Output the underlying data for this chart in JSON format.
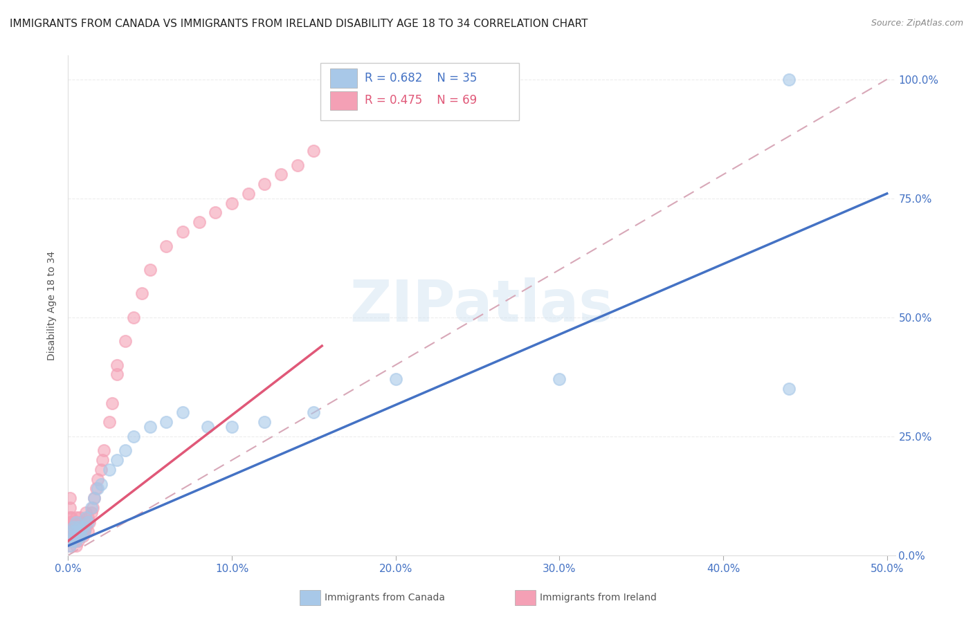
{
  "title": "IMMIGRANTS FROM CANADA VS IMMIGRANTS FROM IRELAND DISABILITY AGE 18 TO 34 CORRELATION CHART",
  "source": "Source: ZipAtlas.com",
  "ylabel": "Disability Age 18 to 34",
  "watermark": "ZIPatlas",
  "xlim": [
    0.0,
    0.5
  ],
  "ylim": [
    0.0,
    1.05
  ],
  "canada_color": "#a8c8e8",
  "ireland_color": "#f4a0b5",
  "canada_R": 0.682,
  "canada_N": 35,
  "ireland_R": 0.475,
  "ireland_N": 69,
  "canada_line_color": "#4472c4",
  "ireland_line_color": "#e05878",
  "ref_line_color": "#d8a8b8",
  "grid_color": "#e8e8e8",
  "title_fontsize": 11,
  "source_fontsize": 9,
  "tick_color": "#4472c4",
  "tick_fontsize": 11,
  "ylabel_fontsize": 10,
  "canada_scatter_x": [
    0.001,
    0.002,
    0.002,
    0.003,
    0.003,
    0.004,
    0.005,
    0.005,
    0.006,
    0.006,
    0.007,
    0.008,
    0.009,
    0.01,
    0.011,
    0.012,
    0.014,
    0.016,
    0.018,
    0.02,
    0.025,
    0.03,
    0.035,
    0.04,
    0.05,
    0.06,
    0.07,
    0.085,
    0.1,
    0.12,
    0.15,
    0.2,
    0.3,
    0.44,
    0.44
  ],
  "canada_scatter_y": [
    0.02,
    0.03,
    0.05,
    0.04,
    0.06,
    0.05,
    0.03,
    0.07,
    0.04,
    0.06,
    0.05,
    0.04,
    0.06,
    0.05,
    0.08,
    0.07,
    0.1,
    0.12,
    0.14,
    0.15,
    0.18,
    0.2,
    0.22,
    0.25,
    0.27,
    0.28,
    0.3,
    0.27,
    0.27,
    0.28,
    0.3,
    0.37,
    0.37,
    1.0,
    0.35
  ],
  "ireland_scatter_x": [
    0.001,
    0.001,
    0.001,
    0.001,
    0.001,
    0.001,
    0.001,
    0.001,
    0.001,
    0.002,
    0.002,
    0.002,
    0.002,
    0.002,
    0.002,
    0.003,
    0.003,
    0.003,
    0.003,
    0.004,
    0.004,
    0.004,
    0.005,
    0.005,
    0.005,
    0.005,
    0.006,
    0.006,
    0.006,
    0.007,
    0.007,
    0.007,
    0.008,
    0.008,
    0.009,
    0.009,
    0.01,
    0.01,
    0.011,
    0.011,
    0.012,
    0.012,
    0.013,
    0.014,
    0.015,
    0.016,
    0.017,
    0.018,
    0.02,
    0.021,
    0.022,
    0.025,
    0.027,
    0.03,
    0.03,
    0.035,
    0.04,
    0.045,
    0.05,
    0.06,
    0.07,
    0.08,
    0.09,
    0.1,
    0.11,
    0.12,
    0.13,
    0.14,
    0.15
  ],
  "ireland_scatter_y": [
    0.02,
    0.03,
    0.04,
    0.05,
    0.06,
    0.07,
    0.08,
    0.1,
    0.12,
    0.03,
    0.04,
    0.05,
    0.06,
    0.07,
    0.08,
    0.03,
    0.04,
    0.05,
    0.07,
    0.03,
    0.05,
    0.07,
    0.02,
    0.04,
    0.06,
    0.08,
    0.03,
    0.05,
    0.07,
    0.04,
    0.06,
    0.08,
    0.05,
    0.07,
    0.04,
    0.06,
    0.05,
    0.07,
    0.06,
    0.09,
    0.05,
    0.08,
    0.07,
    0.09,
    0.1,
    0.12,
    0.14,
    0.16,
    0.18,
    0.2,
    0.22,
    0.28,
    0.32,
    0.38,
    0.4,
    0.45,
    0.5,
    0.55,
    0.6,
    0.65,
    0.68,
    0.7,
    0.72,
    0.74,
    0.76,
    0.78,
    0.8,
    0.82,
    0.85
  ]
}
